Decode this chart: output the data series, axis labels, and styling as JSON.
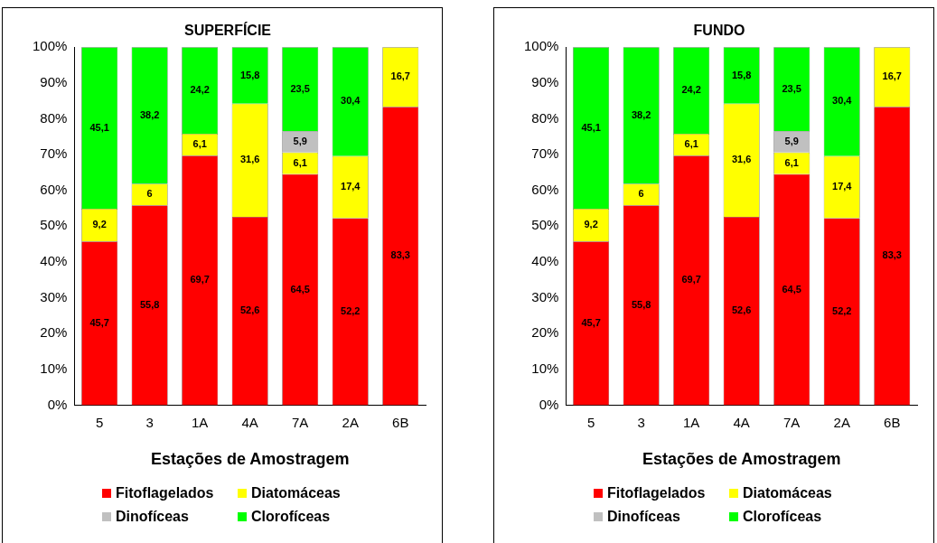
{
  "chart_data": [
    {
      "type": "bar",
      "title": "SUPERFÍCIE",
      "xlabel": "Estações de Amostragem",
      "categories": [
        "5",
        "3",
        "1A",
        "4A",
        "7A",
        "2A",
        "6B"
      ],
      "stacked": true,
      "legend": "bottom",
      "grid": false,
      "ylim": [
        0,
        100
      ],
      "yticks": [
        {
          "value": 0,
          "label": "0%"
        },
        {
          "value": 10,
          "label": "10%"
        },
        {
          "value": 20,
          "label": "20%"
        },
        {
          "value": 30,
          "label": "30%"
        },
        {
          "value": 40,
          "label": "40%"
        },
        {
          "value": 50,
          "label": "50%"
        },
        {
          "value": 60,
          "label": "60%"
        },
        {
          "value": 70,
          "label": "70%"
        },
        {
          "value": 80,
          "label": "80%"
        },
        {
          "value": 90,
          "label": "90%"
        },
        {
          "value": 100,
          "label": "100%"
        }
      ],
      "series": [
        {
          "name": "Fitoflagelados",
          "color": "#ff0000",
          "values": [
            45.7,
            55.8,
            69.7,
            52.6,
            64.5,
            52.2,
            83.3
          ],
          "value_labels": [
            "45,7",
            "55,8",
            "69,7",
            "52,6",
            "64,5",
            "52,2",
            "83,3"
          ]
        },
        {
          "name": "Diatomáceas",
          "color": "#ffff00",
          "values": [
            9.2,
            6,
            6.1,
            31.6,
            6.1,
            17.4,
            16.7
          ],
          "value_labels": [
            "9,2",
            "6",
            "6,1",
            "31,6",
            "6,1",
            "17,4",
            "16,7"
          ]
        },
        {
          "name": "Dinofíceas",
          "color": "#c0c0c0",
          "values": [
            null,
            null,
            null,
            null,
            5.9,
            null,
            null
          ],
          "value_labels": [
            null,
            null,
            null,
            null,
            "5,9",
            null,
            null
          ]
        },
        {
          "name": "Clorofíceas",
          "color": "#00ff00",
          "values": [
            45.1,
            38.2,
            24.2,
            15.8,
            23.5,
            30.4,
            null
          ],
          "value_labels": [
            "45,1",
            "38,2",
            "24,2",
            "15,8",
            "23,5",
            "30,4",
            null
          ]
        }
      ]
    },
    {
      "type": "bar",
      "title": "FUNDO",
      "xlabel": "Estações de Amostragem",
      "categories": [
        "5",
        "3",
        "1A",
        "4A",
        "7A",
        "2A",
        "6B"
      ],
      "stacked": true,
      "legend": "bottom",
      "grid": false,
      "ylim": [
        0,
        100
      ],
      "yticks": [
        {
          "value": 0,
          "label": "0%"
        },
        {
          "value": 10,
          "label": "10%"
        },
        {
          "value": 20,
          "label": "20%"
        },
        {
          "value": 30,
          "label": "30%"
        },
        {
          "value": 40,
          "label": "40%"
        },
        {
          "value": 50,
          "label": "50%"
        },
        {
          "value": 60,
          "label": "60%"
        },
        {
          "value": 70,
          "label": "70%"
        },
        {
          "value": 80,
          "label": "80%"
        },
        {
          "value": 90,
          "label": "90%"
        },
        {
          "value": 100,
          "label": "100%"
        }
      ],
      "series": [
        {
          "name": "Fitoflagelados",
          "color": "#ff0000",
          "values": [
            45.7,
            55.8,
            69.7,
            52.6,
            64.5,
            52.2,
            83.3
          ],
          "value_labels": [
            "45,7",
            "55,8",
            "69,7",
            "52,6",
            "64,5",
            "52,2",
            "83,3"
          ]
        },
        {
          "name": "Diatomáceas",
          "color": "#ffff00",
          "values": [
            9.2,
            6,
            6.1,
            31.6,
            6.1,
            17.4,
            16.7
          ],
          "value_labels": [
            "9,2",
            "6",
            "6,1",
            "31,6",
            "6,1",
            "17,4",
            "16,7"
          ]
        },
        {
          "name": "Dinofíceas",
          "color": "#c0c0c0",
          "values": [
            null,
            null,
            null,
            null,
            5.9,
            null,
            null
          ],
          "value_labels": [
            null,
            null,
            null,
            null,
            "5,9",
            null,
            null
          ]
        },
        {
          "name": "Clorofíceas",
          "color": "#00ff00",
          "values": [
            45.1,
            38.2,
            24.2,
            15.8,
            23.5,
            30.4,
            null
          ],
          "value_labels": [
            "45,1",
            "38,2",
            "24,2",
            "15,8",
            "23,5",
            "30,4",
            null
          ]
        }
      ]
    }
  ]
}
